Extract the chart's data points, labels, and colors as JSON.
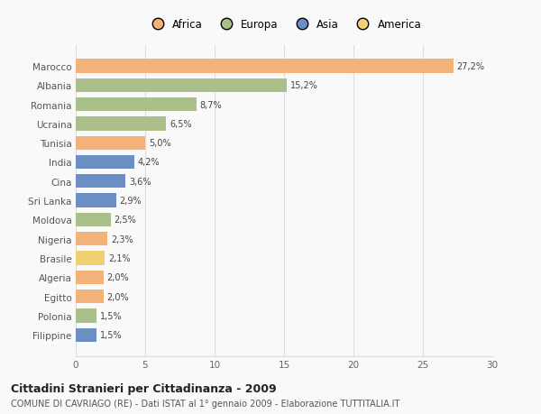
{
  "countries": [
    "Marocco",
    "Albania",
    "Romania",
    "Ucraina",
    "Tunisia",
    "India",
    "Cina",
    "Sri Lanka",
    "Moldova",
    "Nigeria",
    "Brasile",
    "Algeria",
    "Egitto",
    "Polonia",
    "Filippine"
  ],
  "values": [
    27.2,
    15.2,
    8.7,
    6.5,
    5.0,
    4.2,
    3.6,
    2.9,
    2.5,
    2.3,
    2.1,
    2.0,
    2.0,
    1.5,
    1.5
  ],
  "labels": [
    "27,2%",
    "15,2%",
    "8,7%",
    "6,5%",
    "5,0%",
    "4,2%",
    "3,6%",
    "2,9%",
    "2,5%",
    "2,3%",
    "2,1%",
    "2,0%",
    "2,0%",
    "1,5%",
    "1,5%"
  ],
  "continents": [
    "Africa",
    "Europa",
    "Europa",
    "Europa",
    "Africa",
    "Asia",
    "Asia",
    "Asia",
    "Europa",
    "Africa",
    "America",
    "Africa",
    "Africa",
    "Europa",
    "Asia"
  ],
  "colors": {
    "Africa": "#F2B27A",
    "Europa": "#AABF8A",
    "Asia": "#6B8FC4",
    "America": "#F0D070"
  },
  "title": "Cittadini Stranieri per Cittadinanza - 2009",
  "subtitle": "COMUNE DI CAVRIAGO (RE) - Dati ISTAT al 1° gennaio 2009 - Elaborazione TUTTITALIA.IT",
  "xlim": [
    0,
    30
  ],
  "xticks": [
    0,
    5,
    10,
    15,
    20,
    25,
    30
  ],
  "background_color": "#f9f9f9",
  "grid_color": "#dddddd",
  "bar_height": 0.72,
  "legend_order": [
    "Africa",
    "Europa",
    "Asia",
    "America"
  ]
}
